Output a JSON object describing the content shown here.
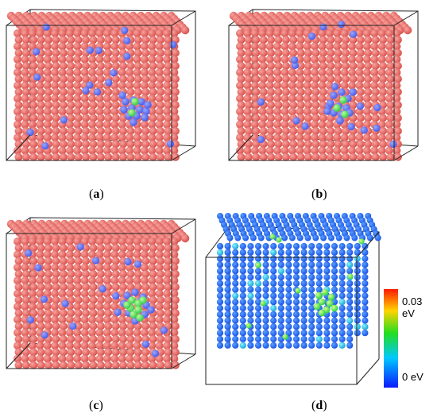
{
  "figure": {
    "panels": [
      {
        "id": "a",
        "caption": "a",
        "style": "red-atoms",
        "highlight": "blue-cluster-with-green"
      },
      {
        "id": "b",
        "caption": "b",
        "style": "red-atoms",
        "highlight": "blue-cluster-with-green"
      },
      {
        "id": "c",
        "caption": "c",
        "style": "red-atoms",
        "highlight": "blue-cluster-with-more-green"
      },
      {
        "id": "d",
        "caption": "d",
        "style": "energy-colormap",
        "highlight": "green-yellow-defect"
      }
    ],
    "colorbar": {
      "top_label": "0.03 eV",
      "bottom_label": "0 eV",
      "colors": [
        "#ff1a00",
        "#ffd400",
        "#22dd22",
        "#00c8ff",
        "#0a1aff"
      ]
    },
    "colors": {
      "atom_red": "#d9534f",
      "atom_blue": "#4b5ee8",
      "atom_green": "#36c94a",
      "atom_energy_base": "#1b55e6",
      "frame": "#222222"
    }
  }
}
